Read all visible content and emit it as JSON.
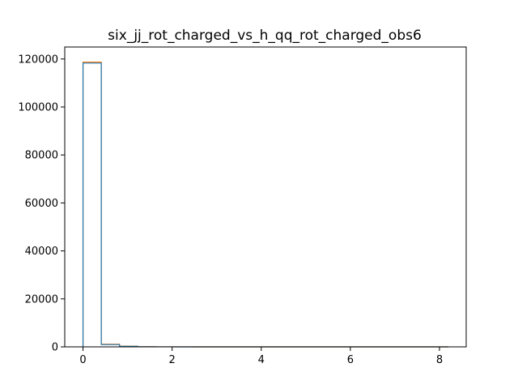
{
  "chart_data": {
    "type": "step-histogram",
    "title": "six_jj_rot_charged_vs_h_qq_rot_charged_obs6",
    "xlabel": "",
    "ylabel": "",
    "xlim": [
      -0.41,
      8.6
    ],
    "ylim": [
      0,
      125000
    ],
    "x_ticks": [
      0,
      2,
      4,
      6,
      8
    ],
    "y_ticks": [
      0,
      20000,
      40000,
      60000,
      80000,
      100000,
      120000
    ],
    "bin_edges": [
      0,
      0.41,
      0.82,
      1.23,
      1.64,
      2.05,
      2.46,
      2.87,
      3.28,
      3.69,
      4.1,
      4.51,
      4.92,
      5.33,
      5.74,
      6.15,
      6.56,
      6.97,
      7.38,
      7.79,
      8.2
    ],
    "grid": false,
    "legend": "none",
    "series": [
      {
        "color": "#ff7f0e",
        "values": [
          118700,
          1100,
          250,
          60,
          25,
          12,
          6,
          4,
          3,
          2,
          1,
          1,
          1,
          0,
          0,
          0,
          0,
          0,
          0,
          1
        ]
      },
      {
        "color": "#1f77b4",
        "values": [
          118300,
          950,
          210,
          50,
          20,
          10,
          5,
          3,
          2,
          2,
          1,
          1,
          0,
          0,
          0,
          0,
          0,
          0,
          0,
          1
        ]
      }
    ]
  }
}
